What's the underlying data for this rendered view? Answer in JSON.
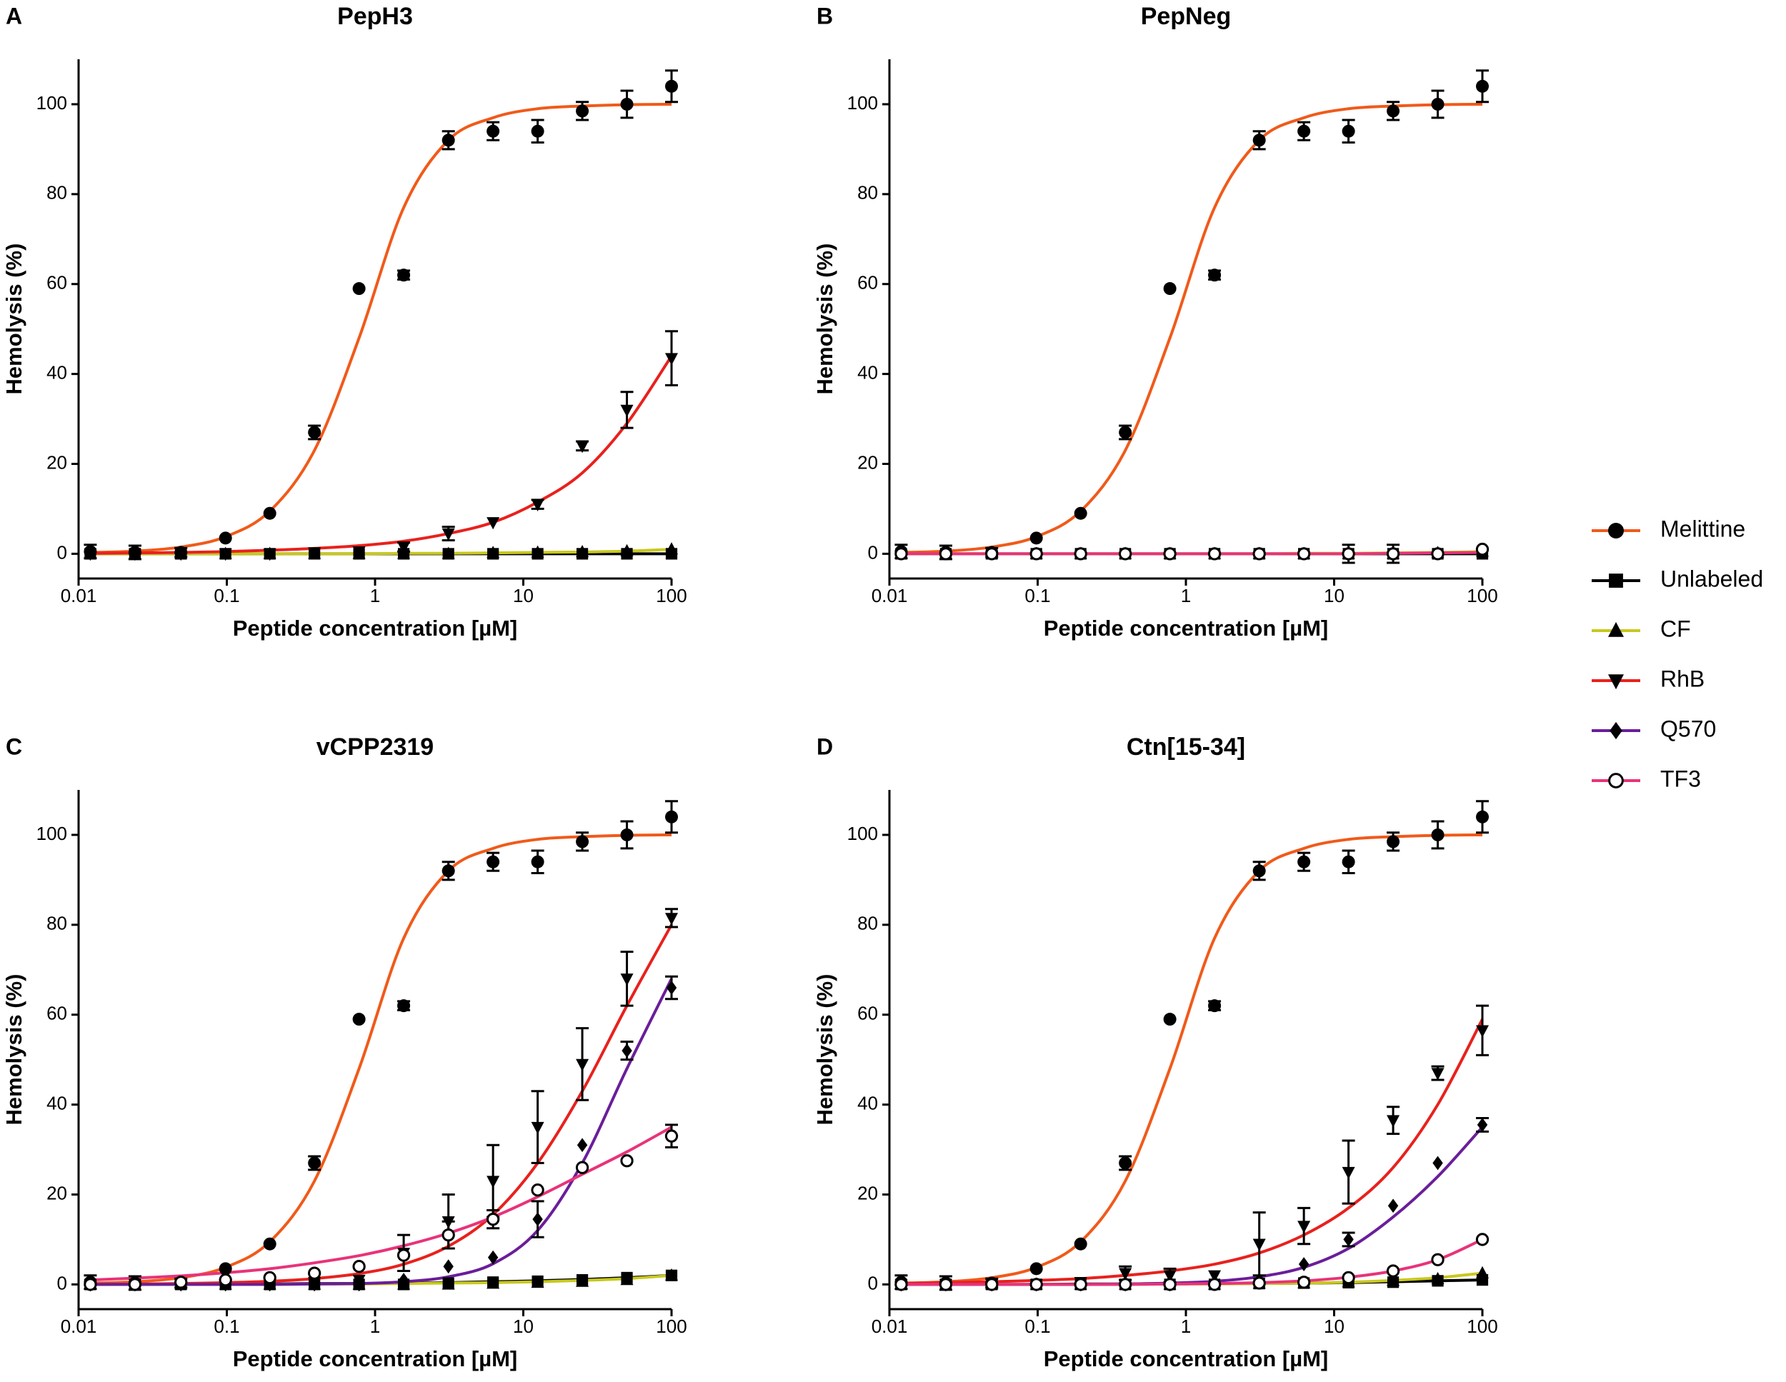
{
  "chart_data": [
    {
      "type": "scatter",
      "panel": "A",
      "title": "PepH3",
      "xlabel": "Peptide concentration [µM]",
      "ylabel": "Hemolysis (%)",
      "xscale": "log",
      "x": [
        0.012,
        0.024,
        0.049,
        0.098,
        0.195,
        0.39,
        0.78,
        1.56,
        3.125,
        6.25,
        12.5,
        25,
        50,
        100
      ],
      "xlim": [
        0.01,
        100
      ],
      "xticks": [
        0.01,
        0.1,
        1,
        10,
        100
      ],
      "ylim": [
        -5.5,
        110
      ],
      "yticks": [
        0,
        20,
        40,
        60,
        80,
        100
      ],
      "series": [
        {
          "name": "Melittine",
          "color": "#f05a1a",
          "marker": "circle",
          "values": [
            0.5,
            0.3,
            0.3,
            3.5,
            9,
            27,
            59,
            62,
            92,
            94,
            94,
            98.5,
            100,
            104
          ],
          "errors": [
            1.5,
            1.5,
            1,
            null,
            null,
            1.5,
            null,
            1,
            2,
            2,
            2.5,
            2,
            3,
            3.5
          ],
          "fit": [
            0.3,
            0.6,
            1.5,
            3.8,
            9.5,
            23,
            48,
            77,
            92,
            97,
            99,
            99.6,
            99.9,
            100
          ]
        },
        {
          "name": "Unlabeled",
          "color": "#000000",
          "marker": "square",
          "values": [
            0,
            0,
            0,
            0,
            0,
            0,
            0,
            0,
            0,
            0,
            0,
            0,
            0,
            0
          ],
          "fit": [
            0,
            0,
            0,
            0,
            0,
            0,
            0,
            0,
            0,
            0,
            0,
            0,
            0,
            0
          ]
        },
        {
          "name": "CF",
          "color": "#c8c81e",
          "marker": "triangle",
          "values": [
            0,
            0,
            0,
            0,
            0,
            0,
            0,
            0,
            0,
            0.2,
            0.3,
            0.4,
            0.6,
            1
          ],
          "fit": [
            0,
            0,
            0,
            0,
            0,
            0,
            0,
            0.1,
            0.1,
            0.2,
            0.3,
            0.4,
            0.6,
            1
          ]
        },
        {
          "name": "RhB",
          "color": "#e8211d",
          "marker": "triangle-down",
          "values": [
            0,
            0,
            0,
            0,
            0,
            0.3,
            0.5,
            1.5,
            4.5,
            7,
            11,
            24,
            32,
            43.5
          ],
          "errors": [
            null,
            null,
            null,
            null,
            null,
            null,
            null,
            1,
            1.5,
            null,
            1,
            1,
            4,
            6
          ],
          "fit": [
            0.1,
            0.2,
            0.3,
            0.5,
            0.8,
            1.2,
            1.8,
            2.8,
            4.5,
            7,
            11.5,
            18,
            29,
            44
          ]
        }
      ]
    },
    {
      "type": "scatter",
      "panel": "B",
      "title": "PepNeg",
      "xlabel": "Peptide concentration [µM]",
      "ylabel": "Hemolysis (%)",
      "xscale": "log",
      "x": [
        0.012,
        0.024,
        0.049,
        0.098,
        0.195,
        0.39,
        0.78,
        1.56,
        3.125,
        6.25,
        12.5,
        25,
        50,
        100
      ],
      "xlim": [
        0.01,
        100
      ],
      "xticks": [
        0.01,
        0.1,
        1,
        10,
        100
      ],
      "ylim": [
        -5.5,
        110
      ],
      "yticks": [
        0,
        20,
        40,
        60,
        80,
        100
      ],
      "series": [
        {
          "name": "Melittine",
          "color": "#f05a1a",
          "marker": "circle",
          "values": [
            0.5,
            0.3,
            0.3,
            3.5,
            9,
            27,
            59,
            62,
            92,
            94,
            94,
            98.5,
            100,
            104
          ],
          "errors": [
            1.5,
            1.5,
            1,
            null,
            null,
            1.5,
            null,
            1,
            2,
            2,
            2.5,
            2,
            3,
            3.5
          ],
          "fit": [
            0.3,
            0.6,
            1.5,
            3.8,
            9.5,
            23,
            48,
            77,
            92,
            97,
            99,
            99.6,
            99.9,
            100
          ]
        },
        {
          "name": "Unlabeled",
          "color": "#000000",
          "marker": "square",
          "values": [
            0,
            0,
            0,
            0,
            0,
            0,
            0,
            0,
            0,
            0,
            0,
            0,
            0,
            0
          ],
          "errors": [
            null,
            null,
            null,
            null,
            null,
            null,
            null,
            null,
            null,
            null,
            2,
            2,
            null,
            null
          ],
          "fit": [
            0,
            0,
            0,
            0,
            0,
            0,
            0,
            0,
            0,
            0,
            0,
            0,
            0,
            0
          ]
        },
        {
          "name": "CF",
          "color": "#c8c81e",
          "marker": "triangle",
          "values": [
            0,
            0,
            0,
            0,
            0,
            0,
            0,
            0,
            0,
            0,
            0,
            0,
            0.2,
            0.5
          ],
          "fit": [
            0,
            0,
            0,
            0,
            0,
            0,
            0,
            0,
            0,
            0.1,
            0.1,
            0.2,
            0.3,
            0.5
          ]
        },
        {
          "name": "TF3",
          "color": "#e8337a",
          "marker": "open-circle",
          "values": [
            0,
            0,
            0,
            0,
            0,
            0,
            0,
            0,
            0,
            0,
            0,
            0,
            0,
            1
          ],
          "fit": [
            0,
            0,
            0,
            0,
            0,
            0,
            0,
            0,
            0,
            0,
            0,
            0.1,
            0.2,
            0.3
          ]
        }
      ]
    },
    {
      "type": "scatter",
      "panel": "C",
      "title": "vCPP2319",
      "xlabel": "Peptide concentration [µM]",
      "ylabel": "Hemolysis (%)",
      "xscale": "log",
      "legend": "right",
      "x": [
        0.012,
        0.024,
        0.049,
        0.098,
        0.195,
        0.39,
        0.78,
        1.56,
        3.125,
        6.25,
        12.5,
        25,
        50,
        100
      ],
      "xlim": [
        0.01,
        100
      ],
      "xticks": [
        0.01,
        0.1,
        1,
        10,
        100
      ],
      "ylim": [
        -5.5,
        110
      ],
      "yticks": [
        0,
        20,
        40,
        60,
        80,
        100
      ],
      "series": [
        {
          "name": "Melittine",
          "color": "#f05a1a",
          "marker": "circle",
          "values": [
            0.5,
            0.3,
            0.3,
            3.5,
            9,
            27,
            59,
            62,
            92,
            94,
            94,
            98.5,
            100,
            104
          ],
          "errors": [
            1.5,
            1.5,
            1,
            null,
            null,
            1.5,
            null,
            1,
            2,
            2,
            2.5,
            2,
            3,
            3.5
          ],
          "fit": [
            0.3,
            0.6,
            1.5,
            3.8,
            9.5,
            23,
            48,
            77,
            92,
            97,
            99,
            99.6,
            99.9,
            100
          ]
        },
        {
          "name": "Unlabeled",
          "color": "#000000",
          "marker": "square",
          "values": [
            0,
            0,
            0,
            0,
            0,
            0,
            0,
            0,
            0.3,
            0.5,
            0.7,
            1,
            1.5,
            2
          ],
          "fit": [
            0,
            0,
            0.1,
            0.1,
            0.1,
            0.2,
            0.2,
            0.3,
            0.4,
            0.6,
            0.8,
            1.1,
            1.5,
            2
          ]
        },
        {
          "name": "CF",
          "color": "#c8c81e",
          "marker": "triangle",
          "values": [
            0,
            0,
            0,
            0,
            0,
            0,
            0,
            0,
            0,
            0.2,
            0.4,
            0.6,
            1,
            2
          ],
          "fit": [
            0,
            0,
            0,
            0,
            0,
            0.1,
            0.1,
            0.2,
            0.3,
            0.4,
            0.6,
            0.9,
            1.3,
            2
          ]
        },
        {
          "name": "RhB",
          "color": "#e8211d",
          "marker": "triangle-down",
          "values": [
            0,
            0,
            0,
            0,
            0.3,
            0.5,
            1,
            7,
            14,
            23,
            35,
            49,
            68,
            81.5
          ],
          "errors": [
            null,
            null,
            null,
            null,
            null,
            null,
            null,
            4,
            6,
            8,
            8,
            8,
            6,
            2
          ],
          "fit": [
            0,
            0.1,
            0.2,
            0.4,
            0.7,
            1.3,
            2.4,
            4.5,
            8.5,
            15.5,
            27,
            43,
            62,
            80
          ]
        },
        {
          "name": "Q570",
          "color": "#6a1e9a",
          "marker": "diamond",
          "values": [
            0,
            0,
            0,
            0,
            0,
            0,
            0,
            1,
            4,
            6,
            14.5,
            31,
            52,
            66
          ],
          "errors": [
            null,
            null,
            null,
            null,
            null,
            null,
            null,
            null,
            null,
            null,
            4,
            null,
            2,
            2.5
          ],
          "fit": [
            0,
            0,
            0,
            0,
            0,
            0.1,
            0.2,
            0.6,
            1.7,
            4.6,
            12,
            27,
            48,
            68
          ]
        },
        {
          "name": "TF3",
          "color": "#e8337a",
          "marker": "open-circle",
          "values": [
            0,
            0,
            0.5,
            1,
            1.5,
            2.5,
            4,
            6.5,
            11,
            14.5,
            21,
            26,
            27.5,
            33
          ],
          "errors": [
            null,
            null,
            null,
            null,
            null,
            null,
            null,
            null,
            3,
            2,
            null,
            null,
            null,
            2.5
          ],
          "fit": [
            1,
            1.4,
            1.9,
            2.6,
            3.5,
            4.8,
            6.4,
            8.6,
            11.4,
            15,
            19.5,
            24.5,
            29.5,
            35
          ]
        }
      ]
    },
    {
      "type": "scatter",
      "panel": "D",
      "title": "Ctn[15-34]",
      "xlabel": "Peptide concentration [µM]",
      "ylabel": "Hemolysis (%)",
      "xscale": "log",
      "x": [
        0.012,
        0.024,
        0.049,
        0.098,
        0.195,
        0.39,
        0.78,
        1.56,
        3.125,
        6.25,
        12.5,
        25,
        50,
        100
      ],
      "xlim": [
        0.01,
        100
      ],
      "xticks": [
        0.01,
        0.1,
        1,
        10,
        100
      ],
      "ylim": [
        -5.5,
        110
      ],
      "yticks": [
        0,
        20,
        40,
        60,
        80,
        100
      ],
      "series": [
        {
          "name": "Melittine",
          "color": "#f05a1a",
          "marker": "circle",
          "values": [
            0.5,
            0.3,
            0.3,
            3.5,
            9,
            27,
            59,
            62,
            92,
            94,
            94,
            98.5,
            100,
            104
          ],
          "errors": [
            1.5,
            1.5,
            1,
            null,
            null,
            1.5,
            null,
            1,
            2,
            2,
            2.5,
            2,
            3,
            3.5
          ],
          "fit": [
            0.3,
            0.6,
            1.5,
            3.8,
            9.5,
            23,
            48,
            77,
            92,
            97,
            99,
            99.6,
            99.9,
            100
          ]
        },
        {
          "name": "Unlabeled",
          "color": "#000000",
          "marker": "square",
          "values": [
            0,
            0,
            0,
            0,
            0,
            0,
            0,
            0,
            0.2,
            0.3,
            0.4,
            0.5,
            0.8,
            1
          ],
          "fit": [
            0,
            0,
            0,
            0,
            0.1,
            0.1,
            0.1,
            0.2,
            0.2,
            0.3,
            0.4,
            0.6,
            0.8,
            1
          ]
        },
        {
          "name": "CF",
          "color": "#c8c81e",
          "marker": "triangle",
          "values": [
            0,
            0,
            0,
            0,
            0,
            0,
            0,
            0,
            0.2,
            0.3,
            0.5,
            0.8,
            1.2,
            2.5
          ],
          "fit": [
            0,
            0,
            0,
            0,
            0,
            0,
            0.1,
            0.1,
            0.2,
            0.3,
            0.5,
            0.9,
            1.5,
            2.5
          ]
        },
        {
          "name": "RhB",
          "color": "#e8211d",
          "marker": "triangle-down",
          "values": [
            0,
            0,
            0,
            0,
            0.5,
            2.5,
            2,
            2,
            9,
            13,
            25,
            36.5,
            47,
            56.5
          ],
          "errors": [
            null,
            null,
            null,
            null,
            null,
            1.5,
            1.5,
            null,
            7,
            4,
            7,
            3,
            1.5,
            5.5
          ],
          "fit": [
            0.2,
            0.4,
            0.6,
            0.9,
            1.3,
            2,
            3,
            4.5,
            7,
            11,
            17,
            26,
            40,
            59
          ]
        },
        {
          "name": "Q570",
          "color": "#6a1e9a",
          "marker": "diamond",
          "values": [
            0,
            0,
            0,
            0,
            0,
            0,
            0,
            0.5,
            1,
            4.5,
            10,
            17.5,
            27,
            35.5
          ],
          "errors": [
            null,
            null,
            null,
            null,
            null,
            null,
            null,
            null,
            null,
            null,
            1.5,
            null,
            null,
            1.5
          ],
          "fit": [
            0,
            0,
            0,
            0,
            0,
            0.1,
            0.3,
            0.7,
            1.7,
            3.8,
            8,
            15,
            24,
            35
          ]
        },
        {
          "name": "TF3",
          "color": "#e8337a",
          "marker": "open-circle",
          "values": [
            0,
            0,
            0,
            0,
            0,
            0,
            0,
            0,
            0.3,
            0.5,
            1.5,
            3,
            5.5,
            10
          ],
          "fit": [
            0,
            0,
            0,
            0,
            0,
            0,
            0.1,
            0.2,
            0.4,
            0.8,
            1.6,
            3,
            5.5,
            10
          ]
        }
      ]
    }
  ]
}
